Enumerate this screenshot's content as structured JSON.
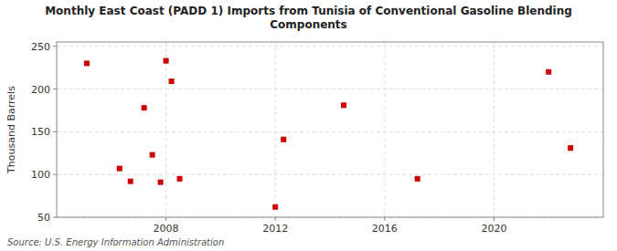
{
  "chart_data": {
    "type": "scatter",
    "title": "Monthly East Coast (PADD 1) Imports from Tunisia of Conventional Gasoline Blending\nComponents",
    "ylabel": "Thousand Barrels",
    "source": "Source: U.S. Energy Information Administration",
    "x": [
      2005.1,
      2006.3,
      2006.7,
      2007.2,
      2007.5,
      2007.8,
      2008.0,
      2008.2,
      2008.5,
      2012.0,
      2012.3,
      2014.5,
      2017.2,
      2022.0,
      2022.8
    ],
    "values": [
      230,
      107,
      92,
      178,
      123,
      91,
      233,
      209,
      95,
      62,
      141,
      181,
      95,
      220,
      131
    ],
    "color": "#cc0000",
    "marker": "square",
    "xlim": [
      2004,
      2024
    ],
    "ylim": [
      50,
      255
    ],
    "xticks": [
      2008,
      2012,
      2016,
      2020
    ],
    "yticks": [
      50,
      100,
      150,
      200,
      250
    ],
    "grid": true
  }
}
